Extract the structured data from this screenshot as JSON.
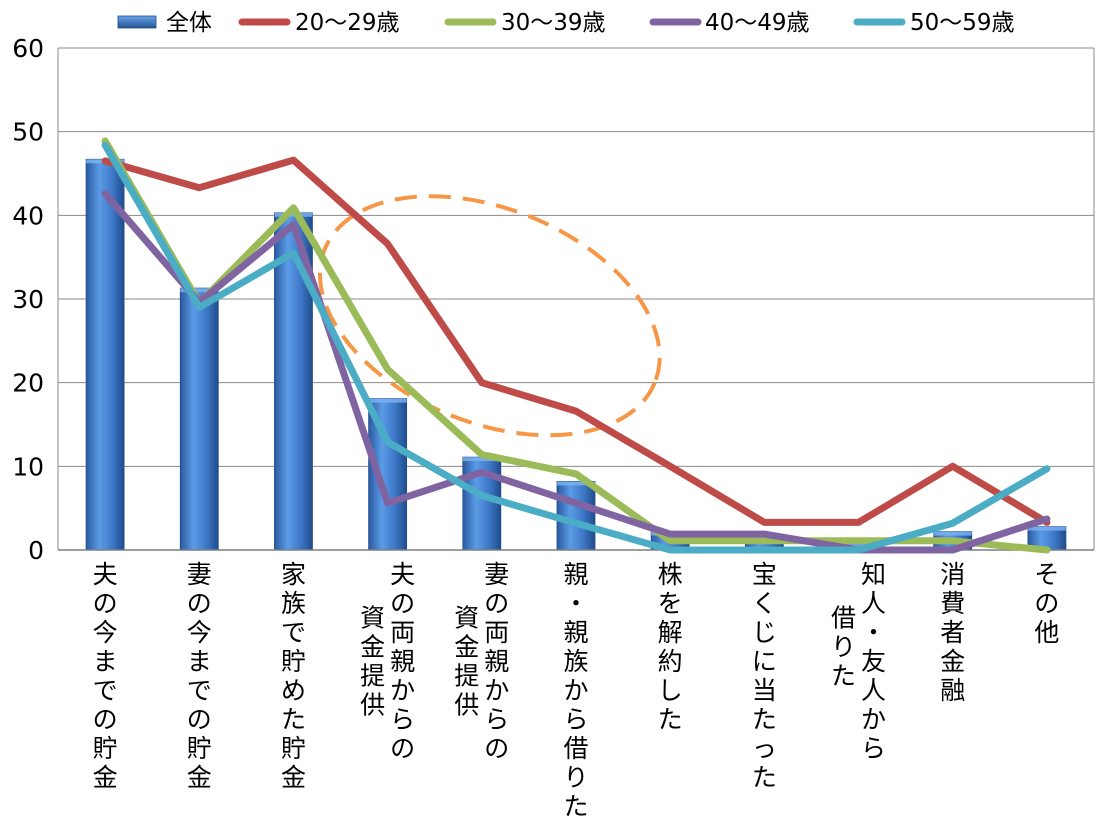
{
  "chart_data": {
    "type": "bar",
    "categories": [
      [
        "夫の今までの貯金"
      ],
      [
        "妻の今までの貯金"
      ],
      [
        "家族で貯めた貯金"
      ],
      [
        "夫の両親からの",
        "資金提供"
      ],
      [
        "妻の両親からの",
        "資金提供"
      ],
      [
        "親・親族から借りた"
      ],
      [
        "株を解約した"
      ],
      [
        "宝くじに当たった"
      ],
      [
        "知人・友人から",
        "借りた"
      ],
      [
        "消費者金融"
      ],
      [
        "その他"
      ]
    ],
    "series": [
      {
        "name": "全体",
        "type": "bar",
        "color": "#4a86d4",
        "values": [
          46.7,
          31.3,
          40.3,
          18.1,
          11.1,
          8.2,
          2.2,
          1.5,
          0.7,
          2.2,
          2.8
        ]
      },
      {
        "name": "20～29歳",
        "type": "line",
        "color": "#be4b48",
        "values": [
          46.5,
          43.3,
          46.6,
          36.6,
          20.0,
          16.6,
          10.0,
          3.3,
          3.3,
          10.0,
          3.3
        ]
      },
      {
        "name": "30～39歳",
        "type": "line",
        "color": "#9bbb59",
        "values": [
          48.9,
          29.5,
          40.9,
          21.6,
          11.4,
          9.1,
          1.1,
          1.1,
          1.1,
          1.1,
          0.0
        ]
      },
      {
        "name": "40～49歳",
        "type": "line",
        "color": "#8064a2",
        "values": [
          42.6,
          29.6,
          38.9,
          5.6,
          9.3,
          5.6,
          1.9,
          1.9,
          0.0,
          0.0,
          3.7
        ]
      },
      {
        "name": "50～59歳",
        "type": "line",
        "color": "#4bacc6",
        "values": [
          48.4,
          29.0,
          35.5,
          12.9,
          6.5,
          3.2,
          0.0,
          0.0,
          0.0,
          3.2,
          9.7
        ]
      }
    ],
    "yticks": [
      0,
      10,
      20,
      30,
      40,
      50,
      60
    ],
    "ylim": [
      0,
      60
    ],
    "grid": true,
    "legend": "top",
    "annotation": {
      "shape": "dashed-ellipse",
      "color": "#f79646",
      "around_categories": [
        "夫の両親からの資金提供",
        "妻の両親からの資金提供",
        "親・親族から借りた"
      ]
    }
  }
}
